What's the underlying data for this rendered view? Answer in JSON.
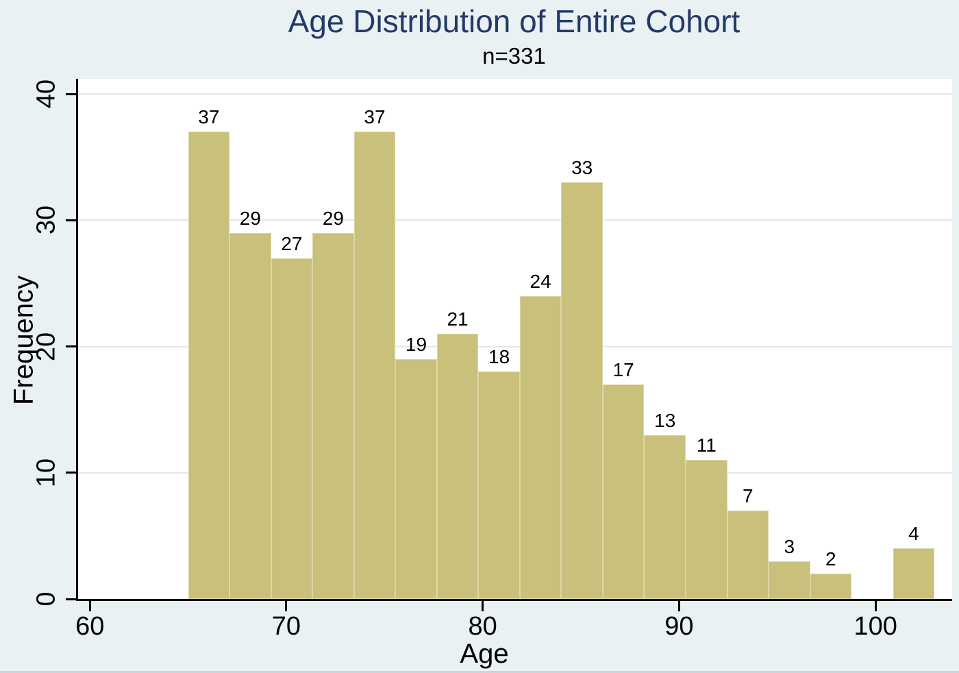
{
  "chart_data": {
    "type": "bar",
    "title": "Age Distribution of Entire Cohort",
    "subtitle": "n=331",
    "xlabel": "Age",
    "ylabel": "Frequency",
    "bin_start": 65,
    "bin_width": 2.1111,
    "bin_counts": [
      37,
      29,
      27,
      29,
      37,
      19,
      21,
      18,
      24,
      33,
      17,
      13,
      11,
      7,
      3,
      2,
      0,
      4
    ],
    "bar_value_labels": [
      "37",
      "29",
      "27",
      "29",
      "37",
      "19",
      "21",
      "18",
      "24",
      "33",
      "17",
      "13",
      "11",
      "7",
      "3",
      "2",
      "",
      "4"
    ],
    "total_n": 331,
    "x_ticks": [
      60,
      70,
      80,
      90,
      100
    ],
    "y_ticks": [
      0,
      10,
      20,
      30,
      40
    ],
    "xlim": [
      59.4,
      103.9
    ],
    "ylim": [
      0,
      41.2
    ],
    "grid": true,
    "legend": "none",
    "colors": {
      "background": "#eaf1f3",
      "plot_background": "#ffffff",
      "bar_fill": "#c8c07b",
      "bar_outline": "#ddd7a4",
      "gridline": "#e4e8eb",
      "axis": "#000000",
      "title": "#233a68",
      "text": "#000000"
    }
  }
}
